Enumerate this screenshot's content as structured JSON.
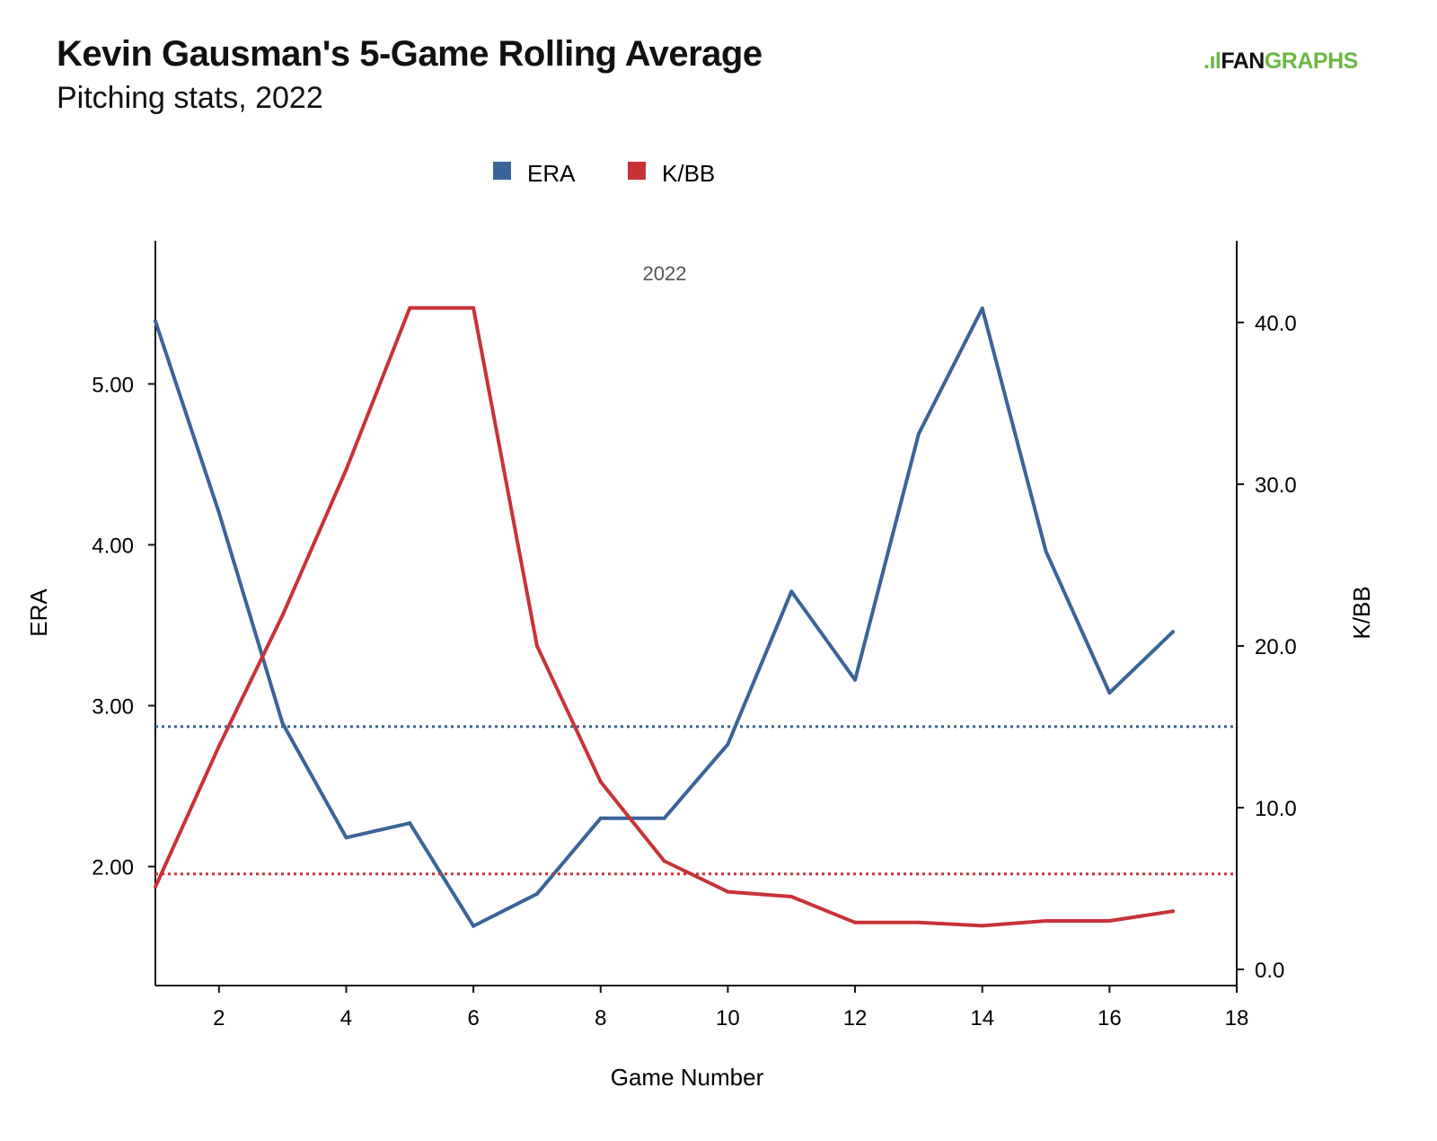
{
  "header": {
    "title": "Kevin Gausman's 5-Game Rolling Average",
    "subtitle": "Pitching stats, 2022",
    "logo": {
      "part1": "FAN",
      "part2": "GRAPHS"
    }
  },
  "chart_data": {
    "type": "line",
    "title": "Kevin Gausman's 5-Game Rolling Average",
    "subtitle": "Pitching stats, 2022",
    "annotation": "2022",
    "xlabel": "Game Number",
    "ylabel": "ERA",
    "y2label": "K/BB",
    "xlim": [
      1,
      18
    ],
    "ylim": [
      1.26,
      5.89
    ],
    "y2lim": [
      -1.0,
      45.05
    ],
    "xticks": [
      "2",
      "4",
      "6",
      "8",
      "10",
      "12",
      "14",
      "16",
      "18"
    ],
    "yticks": [
      "2.00",
      "3.00",
      "4.00",
      "5.00"
    ],
    "y2ticks": [
      "0.0",
      "10.0",
      "20.0",
      "30.0",
      "40.0"
    ],
    "legend": {
      "placement": "top-center",
      "entries": [
        "ERA",
        "K/BB"
      ]
    },
    "x": [
      1,
      2,
      3,
      4,
      5,
      6,
      7,
      8,
      9,
      10,
      11,
      12,
      13,
      14,
      15,
      16,
      17
    ],
    "series": [
      {
        "name": "ERA",
        "axis": "left",
        "color": "#3a6498",
        "values": [
          5.39,
          4.2,
          2.89,
          2.18,
          2.27,
          1.63,
          1.83,
          2.3,
          2.3,
          2.76,
          3.71,
          3.16,
          4.69,
          5.47,
          3.96,
          3.08,
          3.46
        ],
        "average": 2.87
      },
      {
        "name": "K/BB",
        "axis": "right",
        "color": "#c83237",
        "values": [
          5.1,
          13.8,
          21.9,
          30.9,
          40.9,
          40.9,
          20.0,
          11.6,
          6.7,
          4.8,
          4.5,
          2.9,
          2.9,
          2.7,
          3.0,
          3.0,
          3.6
        ],
        "average": 5.9
      }
    ]
  }
}
